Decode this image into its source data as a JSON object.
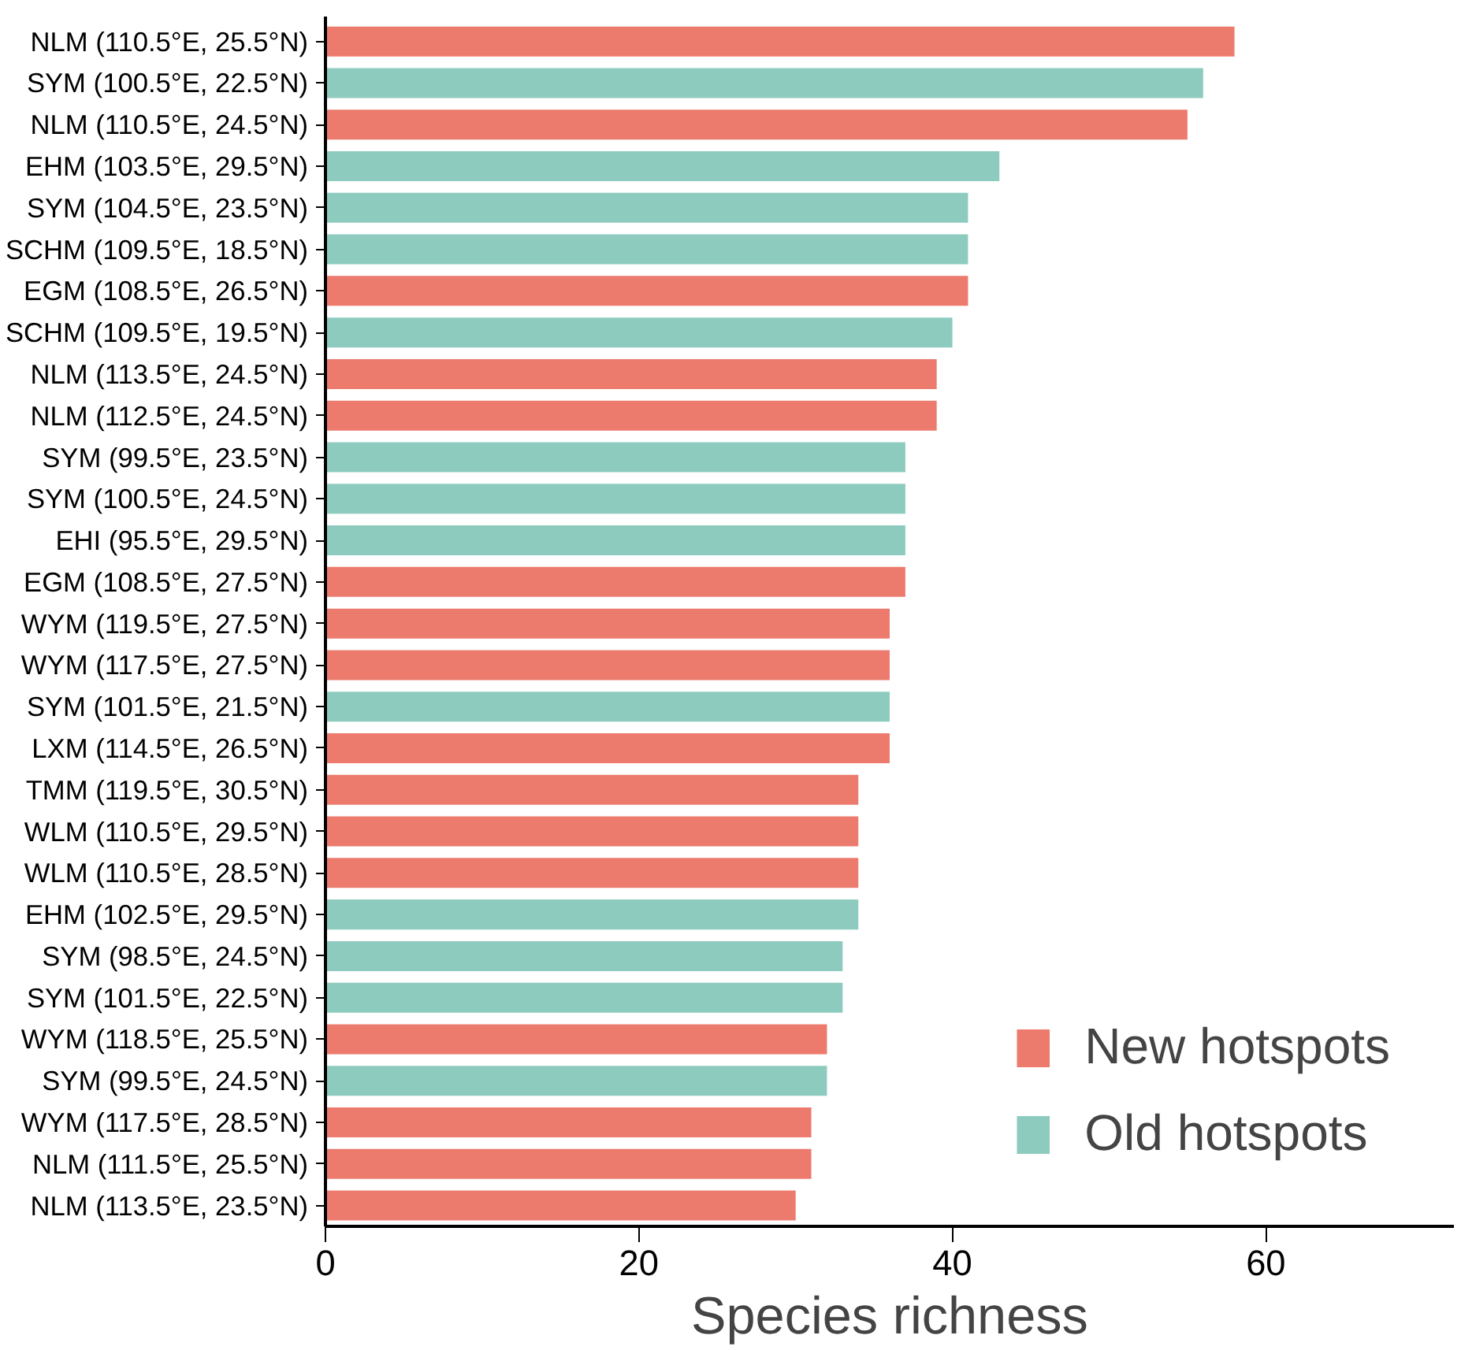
{
  "chart_data": {
    "type": "bar",
    "orientation": "horizontal",
    "xlabel": "Species richness",
    "categories": [
      "NLM (110.5°E, 25.5°N)",
      "SYM (100.5°E, 22.5°N)",
      "NLM (110.5°E, 24.5°N)",
      "EHM (103.5°E, 29.5°N)",
      "SYM (104.5°E, 23.5°N)",
      "SCHM (109.5°E, 18.5°N)",
      "EGM (108.5°E, 26.5°N)",
      "SCHM (109.5°E, 19.5°N)",
      "NLM (113.5°E, 24.5°N)",
      "NLM (112.5°E, 24.5°N)",
      "SYM (99.5°E, 23.5°N)",
      "SYM (100.5°E, 24.5°N)",
      "EHI (95.5°E, 29.5°N)",
      "EGM (108.5°E, 27.5°N)",
      "WYM (119.5°E, 27.5°N)",
      "WYM (117.5°E, 27.5°N)",
      "SYM (101.5°E, 21.5°N)",
      "LXM (114.5°E, 26.5°N)",
      "TMM (119.5°E, 30.5°N)",
      "WLM (110.5°E, 29.5°N)",
      "WLM (110.5°E, 28.5°N)",
      "EHM (102.5°E, 29.5°N)",
      "SYM (98.5°E, 24.5°N)",
      "SYM (101.5°E, 22.5°N)",
      "WYM (118.5°E, 25.5°N)",
      "SYM (99.5°E, 24.5°N)",
      "WYM (117.5°E, 28.5°N)",
      "NLM (111.5°E, 25.5°N)",
      "NLM (113.5°E, 23.5°N)"
    ],
    "series": [
      {
        "name": "New hotspots",
        "color": "#ec7b6e",
        "values": [
          58,
          null,
          55,
          null,
          null,
          null,
          41,
          null,
          39,
          39,
          null,
          null,
          null,
          37,
          36,
          36,
          null,
          36,
          34,
          34,
          34,
          null,
          null,
          null,
          32,
          null,
          31,
          31,
          30
        ]
      },
      {
        "name": "Old hotspots",
        "color": "#8ecbbf",
        "values": [
          null,
          56,
          null,
          43,
          41,
          41,
          null,
          40,
          null,
          null,
          37,
          37,
          37,
          null,
          null,
          null,
          36,
          null,
          null,
          null,
          null,
          34,
          33,
          33,
          null,
          32,
          null,
          null,
          null
        ]
      }
    ],
    "xlim": [
      0,
      72
    ],
    "xticks": [
      0,
      20,
      40,
      60
    ],
    "grid": false,
    "legend": "bottom right"
  }
}
